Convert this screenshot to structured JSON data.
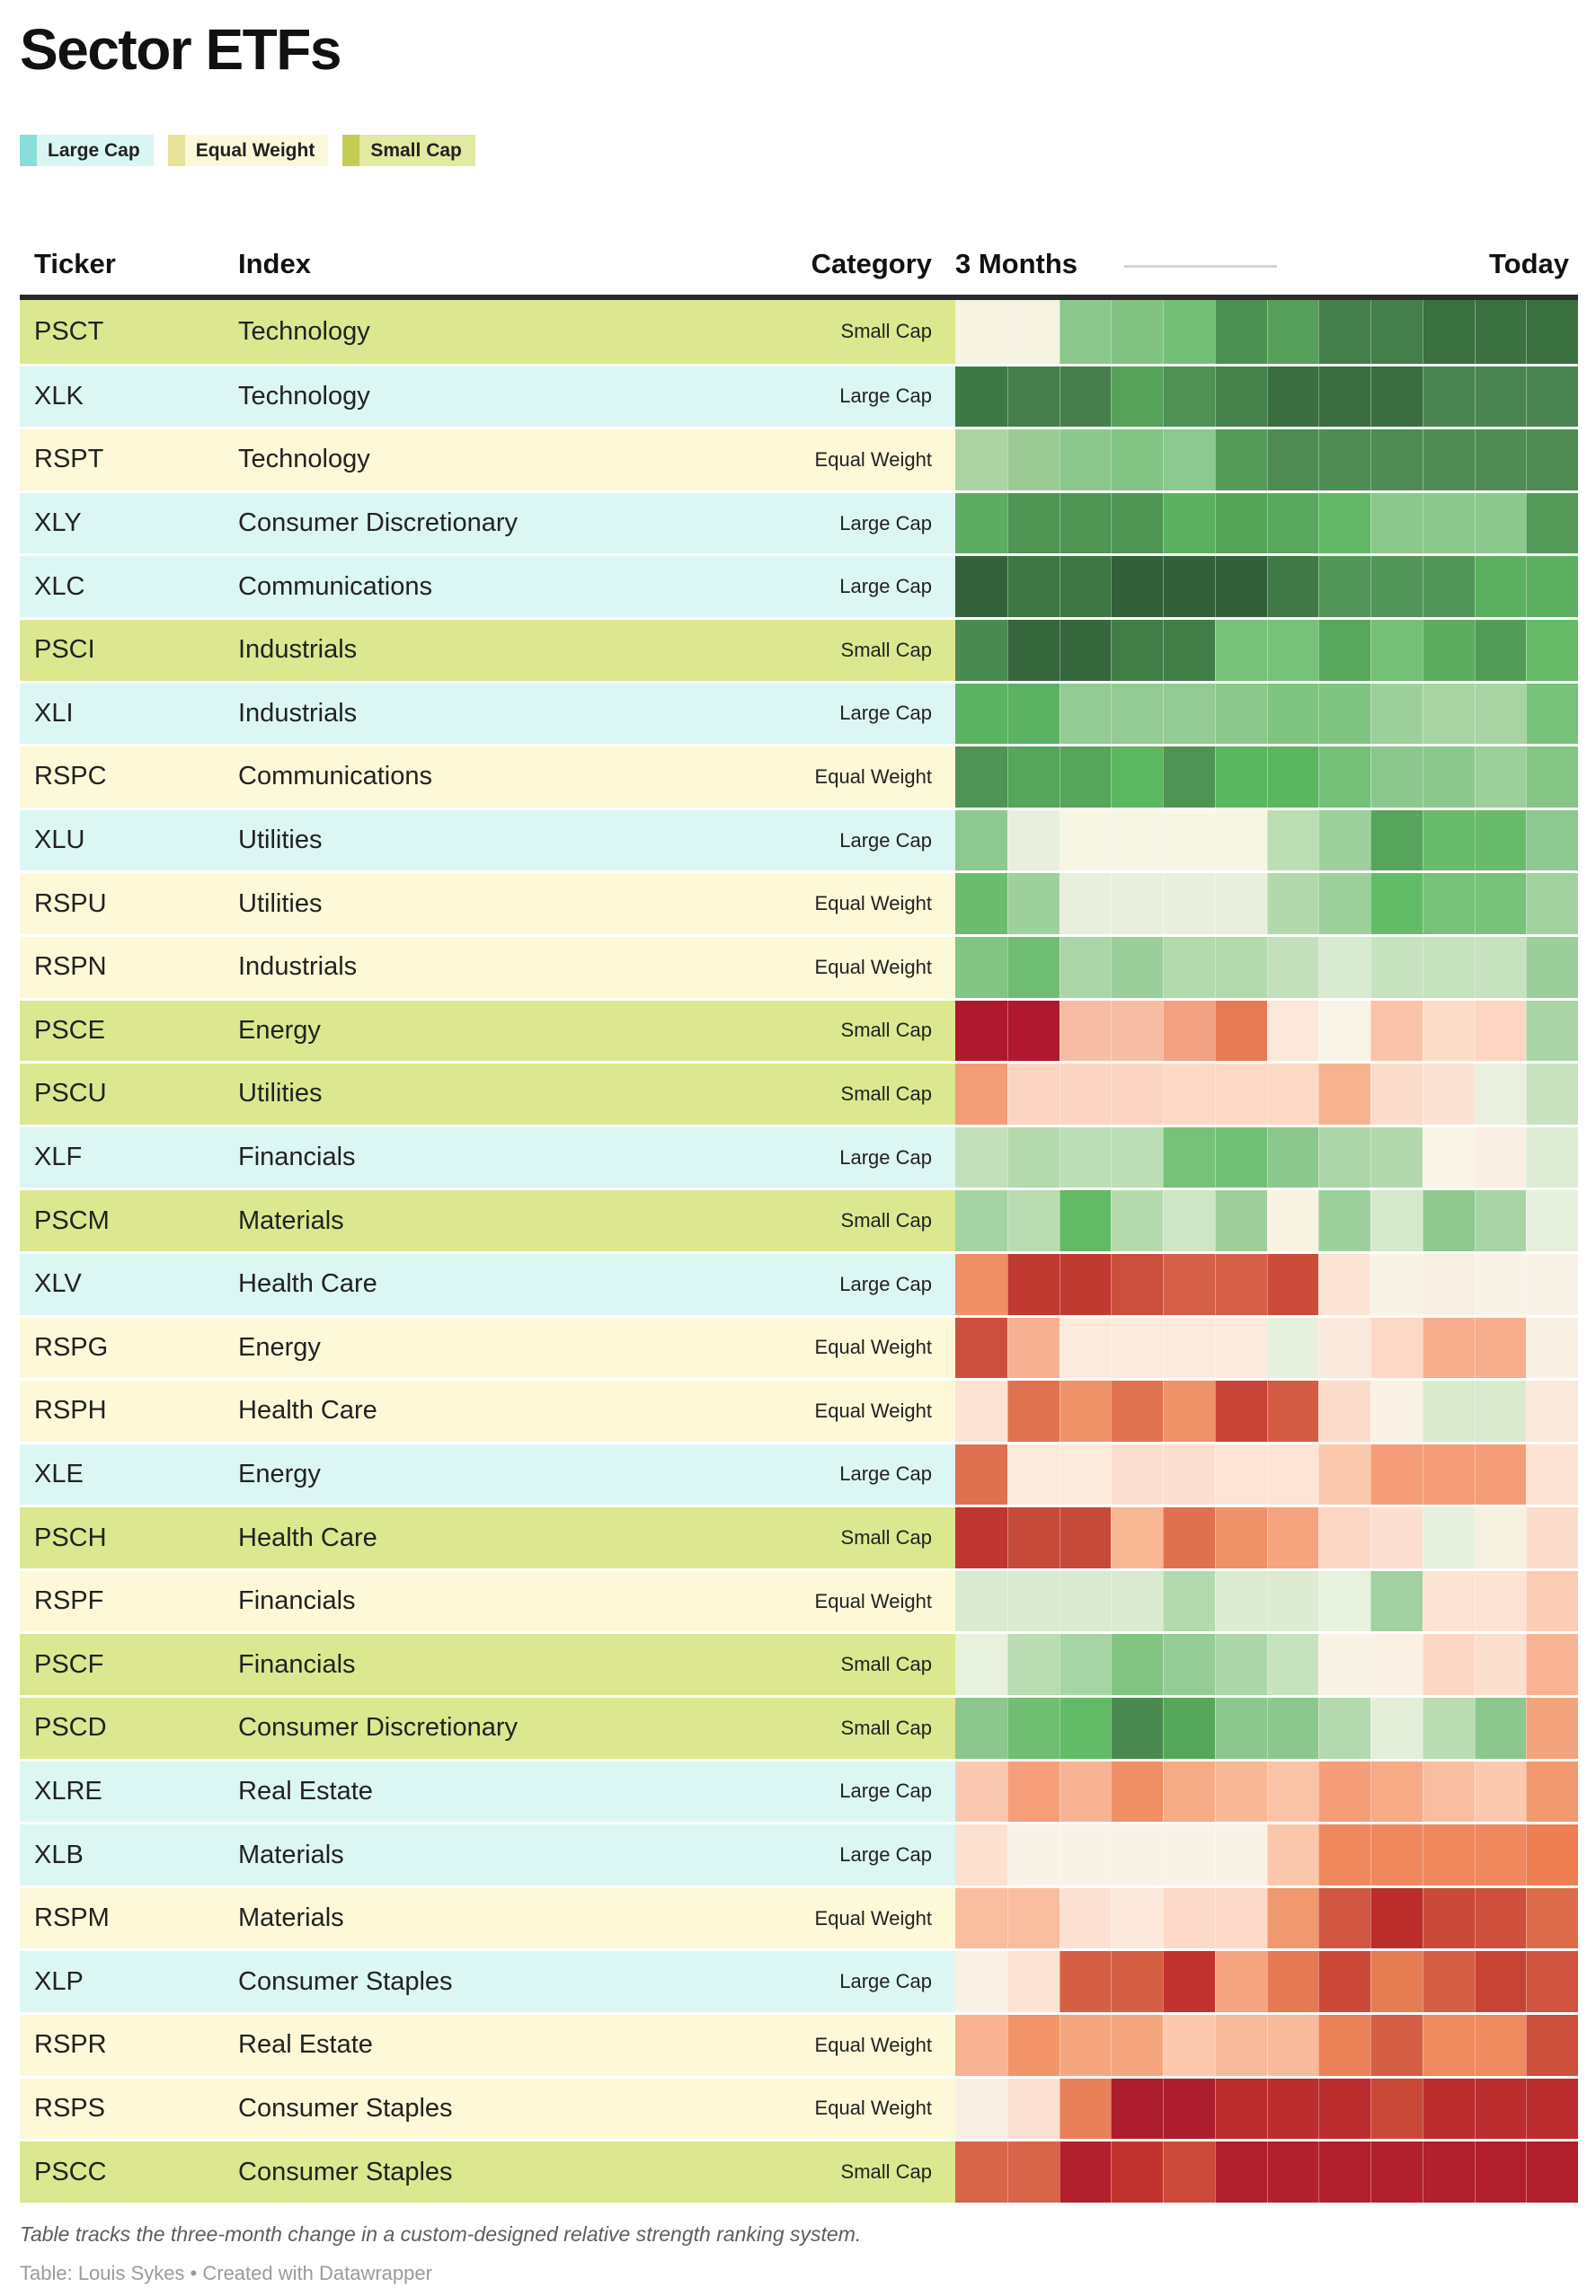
{
  "title": "Sector ETFs",
  "legend": {
    "items": [
      {
        "label": "Large Cap",
        "swatch": "#88dfd9",
        "bg": "#d9f6f4"
      },
      {
        "label": "Equal Weight",
        "swatch": "#e7e29b",
        "bg": "#fcf8da"
      },
      {
        "label": "Small Cap",
        "swatch": "#c3cd52",
        "bg": "#e2eaa2"
      }
    ]
  },
  "header": {
    "ticker": "Ticker",
    "index": "Index",
    "category": "Category",
    "range_start": "3 Months",
    "range_end": "Today"
  },
  "categories": {
    "Large Cap": "#dcf6f4",
    "Equal Weight": "#fdf9d8",
    "Small Cap": "#dce88f"
  },
  "footer": {
    "note": "Table tracks the three-month change in a custom-designed relative strength ranking system.",
    "credit": "Table: Louis Sykes • Created with Datawrapper"
  },
  "chart_data": {
    "type": "heatmap",
    "title": "Sector ETFs",
    "timeline": {
      "start_label": "3 Months",
      "end_label": "Today",
      "cells_per_row": 12
    },
    "value_encoding": "relative strength rank change encoded as cell color from dark red (weak) to dark green (strong); no numeric labels shown",
    "rows": [
      {
        "ticker": "PSCT",
        "index": "Technology",
        "category": "Small Cap",
        "cells": [
          "#f6f3e2",
          "#f6f3e2",
          "#8cc78e",
          "#82c384",
          "#74bf77",
          "#4c9052",
          "#57a05b",
          "#447e4a",
          "#447e4a",
          "#3b7041",
          "#3b7041",
          "#3b7041"
        ]
      },
      {
        "ticker": "XLK",
        "index": "Technology",
        "category": "Large Cap",
        "cells": [
          "#3d7944",
          "#467f4b",
          "#467f4b",
          "#55a258",
          "#4e9153",
          "#44814b",
          "#3a6d40",
          "#3a6d40",
          "#3a6d40",
          "#4a8450",
          "#4a8450",
          "#4a8450"
        ]
      },
      {
        "ticker": "RSPT",
        "index": "Technology",
        "category": "Equal Weight",
        "cells": [
          "#abd3a4",
          "#9bca95",
          "#8bc78c",
          "#82c483",
          "#8cc88f",
          "#569b5a",
          "#4e8c53",
          "#4e8c53",
          "#4e8c53",
          "#4e8c53",
          "#4e8c53",
          "#4e8c53"
        ]
      },
      {
        "ticker": "XLY",
        "index": "Consumer Discretionary",
        "category": "Large Cap",
        "cells": [
          "#5eac62",
          "#4f9554",
          "#4f9554",
          "#4f9554",
          "#5cb160",
          "#55a458",
          "#5aa85e",
          "#62b766",
          "#8bc88b",
          "#8bc88b",
          "#8bc88b",
          "#549a59"
        ]
      },
      {
        "ticker": "XLC",
        "index": "Communications",
        "category": "Large Cap",
        "cells": [
          "#34613a",
          "#3e7644",
          "#3e7644",
          "#326038",
          "#326038",
          "#326038",
          "#407846",
          "#539659",
          "#539659",
          "#539659",
          "#5db061",
          "#5db061"
        ]
      },
      {
        "ticker": "PSCI",
        "index": "Industrials",
        "category": "Small Cap",
        "cells": [
          "#4a8a50",
          "#36663c",
          "#36663c",
          "#427d48",
          "#427d48",
          "#76c27a",
          "#76c27a",
          "#57a75c",
          "#74c077",
          "#5dad61",
          "#539c58",
          "#66bb69"
        ]
      },
      {
        "ticker": "XLI",
        "index": "Industrials",
        "category": "Large Cap",
        "cells": [
          "#5bb260",
          "#5bb260",
          "#94ca94",
          "#94ca94",
          "#94ca94",
          "#8cc88c",
          "#80c481",
          "#80c481",
          "#9dcf9b",
          "#a8d4a4",
          "#a8d4a4",
          "#78c17b"
        ]
      },
      {
        "ticker": "RSPC",
        "index": "Communications",
        "category": "Equal Weight",
        "cells": [
          "#4f9355",
          "#55a55b",
          "#55a55b",
          "#5cb761",
          "#4f9355",
          "#5bb75f",
          "#5bb75f",
          "#74c077",
          "#8cc88d",
          "#8cc88d",
          "#9dcf9b",
          "#85c687"
        ]
      },
      {
        "ticker": "XLU",
        "index": "Utilities",
        "category": "Large Cap",
        "cells": [
          "#8cc88f",
          "#e8f0dd",
          "#f7f5e4",
          "#f7f5e4",
          "#f7f5e4",
          "#f7f5e4",
          "#bcdcb3",
          "#9ed09c",
          "#57a55d",
          "#68bb6b",
          "#68bb6b",
          "#8cc88f"
        ]
      },
      {
        "ticker": "RSPU",
        "index": "Utilities",
        "category": "Equal Weight",
        "cells": [
          "#6cbc6f",
          "#9ed09c",
          "#e8f0dd",
          "#e8f0dd",
          "#e8f0dd",
          "#e8f0dd",
          "#b2d8ab",
          "#9ccf9a",
          "#62bb66",
          "#76c279",
          "#76c279",
          "#a2d1a0"
        ]
      },
      {
        "ticker": "RSPN",
        "index": "Industrials",
        "category": "Equal Weight",
        "cells": [
          "#82c584",
          "#6fbe73",
          "#abd5a8",
          "#9bce9a",
          "#b3d9ad",
          "#b3d9ad",
          "#c2e0bb",
          "#d8ead0",
          "#c6e2bf",
          "#c6e2bf",
          "#c6e2bf",
          "#9bce9a"
        ]
      },
      {
        "ticker": "PSCE",
        "index": "Energy",
        "category": "Small Cap",
        "cells": [
          "#b01830",
          "#b01830",
          "#f6bda4",
          "#f6bda4",
          "#f2a183",
          "#e57a55",
          "#fbe8da",
          "#f8f4e7",
          "#f9c3a9",
          "#fcddc9",
          "#fcd6c3",
          "#aad4a6"
        ]
      },
      {
        "ticker": "PSCU",
        "index": "Utilities",
        "category": "Small Cap",
        "cells": [
          "#f29d78",
          "#fcd4c2",
          "#fcd4c2",
          "#fcd4c2",
          "#fcd8c5",
          "#fcd8c5",
          "#fcd8c5",
          "#f7b28f",
          "#fcdccb",
          "#fae3d4",
          "#e9f0df",
          "#c8e2c0"
        ]
      },
      {
        "ticker": "XLF",
        "index": "Financials",
        "category": "Large Cap",
        "cells": [
          "#c2e0bb",
          "#b3d9ad",
          "#bcddb5",
          "#bcddb5",
          "#77c17a",
          "#72c076",
          "#8cc88d",
          "#abd5a7",
          "#b3d8ae",
          "#f8f5e6",
          "#f9efe2",
          "#dfecd5"
        ]
      },
      {
        "ticker": "PSCM",
        "index": "Materials",
        "category": "Small Cap",
        "cells": [
          "#a6d3a3",
          "#b8dbb1",
          "#62b966",
          "#b5daae",
          "#cfe6c6",
          "#9ecf9d",
          "#f9f3e4",
          "#9ed09d",
          "#d5e8cc",
          "#8fc98f",
          "#a8d4a5",
          "#e6efdb"
        ]
      },
      {
        "ticker": "XLV",
        "index": "Health Care",
        "category": "Large Cap",
        "cells": [
          "#f08f66",
          "#c03a32",
          "#c03a32",
          "#cc4f3d",
          "#d55f48",
          "#d55f48",
          "#cc4b3a",
          "#fce4d4",
          "#f7f4e5",
          "#f8efe3",
          "#f8f3e6",
          "#f8f3e6"
        ]
      },
      {
        "ticker": "RSPG",
        "index": "Energy",
        "category": "Equal Weight",
        "cells": [
          "#cc4f3d",
          "#f7b091",
          "#fceadd",
          "#fceadd",
          "#fcebdd",
          "#fcebdd",
          "#e6f0dc",
          "#faeade",
          "#fcd8c6",
          "#f7ae8d",
          "#f7ae8d",
          "#f8f0e3"
        ]
      },
      {
        "ticker": "RSPH",
        "index": "Health Care",
        "category": "Equal Weight",
        "cells": [
          "#fce3d3",
          "#e0724f",
          "#ef9268",
          "#e0724f",
          "#ef9268",
          "#c74336",
          "#d45c45",
          "#fcdcca",
          "#f9f1e3",
          "#d9e9ce",
          "#d9e9ce",
          "#fae9db"
        ]
      },
      {
        "ticker": "XLE",
        "index": "Energy",
        "category": "Large Cap",
        "cells": [
          "#e0714e",
          "#fceadd",
          "#fceadd",
          "#fcdfd0",
          "#fcdfd0",
          "#fce5d6",
          "#fce5d6",
          "#fbc8ad",
          "#f49d76",
          "#f49d76",
          "#f49d76",
          "#fce3d3"
        ]
      },
      {
        "ticker": "PSCH",
        "index": "Health Care",
        "category": "Small Cap",
        "cells": [
          "#bf3532",
          "#c54a39",
          "#c54a39",
          "#f9b794",
          "#e0714e",
          "#ef9268",
          "#f5a47e",
          "#fcd7c4",
          "#fcdfd0",
          "#e7f0dd",
          "#f6f0e1",
          "#fcdccb"
        ]
      },
      {
        "ticker": "RSPF",
        "index": "Financials",
        "category": "Equal Weight",
        "cells": [
          "#d9ead0",
          "#d9ead0",
          "#d9ead0",
          "#d9ead0",
          "#b3d9ae",
          "#dcebd2",
          "#dcebd2",
          "#e8f1de",
          "#a1d1a0",
          "#fce3d3",
          "#fce3d3",
          "#fbcdb5"
        ]
      },
      {
        "ticker": "PSCF",
        "index": "Financials",
        "category": "Small Cap",
        "cells": [
          "#e8f0de",
          "#b9dcb3",
          "#a7d4a4",
          "#82c583",
          "#96cc96",
          "#abd6a8",
          "#c6e2bf",
          "#f8f3e5",
          "#faf0e3",
          "#fcd7c5",
          "#fce0cf",
          "#f8b495"
        ]
      },
      {
        "ticker": "PSCD",
        "index": "Consumer Discretionary",
        "category": "Small Cap",
        "cells": [
          "#8cc88d",
          "#6fbe72",
          "#62bb66",
          "#4a8a50",
          "#55a85b",
          "#8cc88d",
          "#8cc88d",
          "#b3d9ae",
          "#e4eed9",
          "#b9dcb3",
          "#8cc88d",
          "#f4a47c"
        ]
      },
      {
        "ticker": "XLRE",
        "index": "Real Estate",
        "category": "Large Cap",
        "cells": [
          "#fbc9b2",
          "#f59e79",
          "#f8b394",
          "#f08f63",
          "#f7ac88",
          "#f8b896",
          "#fbc4a9",
          "#f49d77",
          "#f7aa86",
          "#f9bda1",
          "#fbc9b0",
          "#f2996f"
        ]
      },
      {
        "ticker": "XLB",
        "index": "Materials",
        "category": "Large Cap",
        "cells": [
          "#fce0d0",
          "#f9f2e6",
          "#f9f2e6",
          "#f9f2e6",
          "#f9f2e6",
          "#f9f2e6",
          "#fbc7ac",
          "#f0885e",
          "#f0885e",
          "#f0885e",
          "#f0885e",
          "#ed7f52"
        ]
      },
      {
        "ticker": "RSPM",
        "index": "Materials",
        "category": "Equal Weight",
        "cells": [
          "#f9bd9f",
          "#f9bd9f",
          "#fce1d2",
          "#fce9dc",
          "#fcd9c8",
          "#fcd9c8",
          "#f2986f",
          "#d15742",
          "#bb2d2b",
          "#cb4939",
          "#cd4f3c",
          "#dd6c4b"
        ]
      },
      {
        "ticker": "XLP",
        "index": "Consumer Staples",
        "category": "Large Cap",
        "cells": [
          "#f9f1e4",
          "#fce3d4",
          "#d45f45",
          "#d45f45",
          "#c23330",
          "#f4a47e",
          "#e57a52",
          "#cc4839",
          "#e67c52",
          "#d45f45",
          "#c74335",
          "#d05440"
        ]
      },
      {
        "ticker": "RSPR",
        "index": "Real Estate",
        "category": "Equal Weight",
        "cells": [
          "#f8b394",
          "#f29467",
          "#f5a67f",
          "#f5a67f",
          "#fbc7ad",
          "#f8b99c",
          "#f8b99c",
          "#ec8257",
          "#d45f45",
          "#ee8a5e",
          "#ee8a5e",
          "#cc4f3b"
        ]
      },
      {
        "ticker": "RSPS",
        "index": "Consumer Staples",
        "category": "Equal Weight",
        "cells": [
          "#f9efe2",
          "#fce1d2",
          "#e8815a",
          "#ad1d2d",
          "#ad1d2d",
          "#bb2c2e",
          "#bb2c2e",
          "#bb2c2e",
          "#ca4837",
          "#bb2c2e",
          "#bb2c2e",
          "#bb2c2e"
        ]
      },
      {
        "ticker": "PSCC",
        "index": "Consumer Staples",
        "category": "Small Cap",
        "cells": [
          "#d8644a",
          "#d8644a",
          "#b1202c",
          "#c23330",
          "#cc4a39",
          "#b1202c",
          "#b1202c",
          "#b1202c",
          "#b1202c",
          "#b1202c",
          "#b1202c",
          "#b1202c"
        ]
      }
    ]
  }
}
